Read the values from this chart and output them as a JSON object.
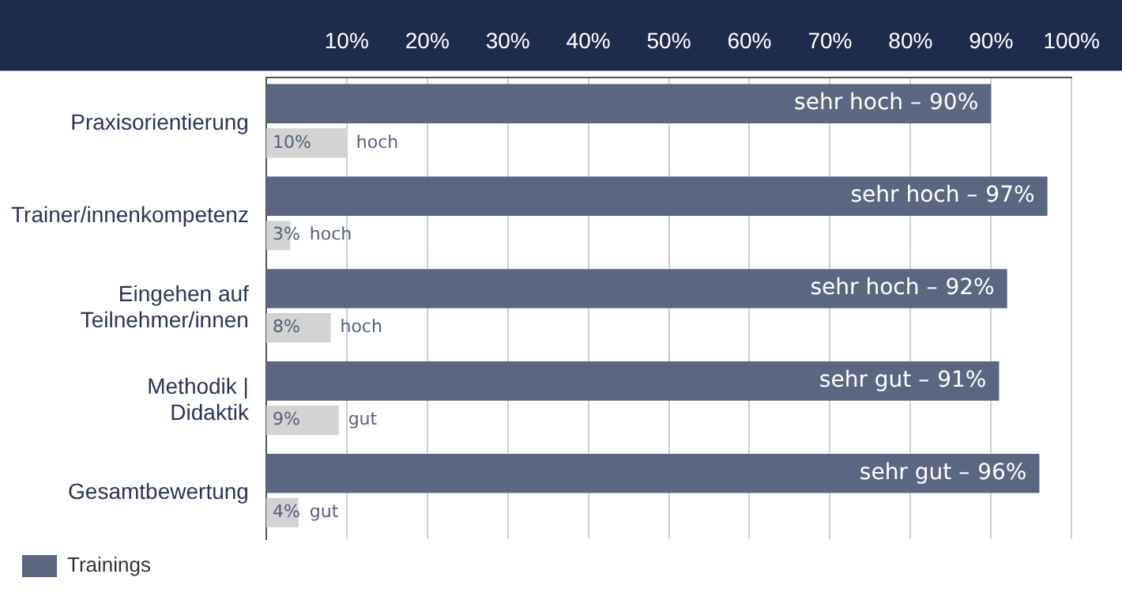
{
  "chart_data": {
    "type": "bar",
    "orientation": "horizontal",
    "categories": [
      "Praxisorientierung",
      "Trainer/innenkompetenz",
      "Eingehen auf\nTeilnehmer/innen",
      "Methodik |\nDidaktik",
      "Gesamtbewertung"
    ],
    "series": [
      {
        "name": "Trainings",
        "color": "#5b6780",
        "values": [
          90,
          97,
          92,
          91,
          96
        ],
        "value_labels": [
          "90%",
          "97%",
          "92%",
          "91%",
          "96%"
        ]
      },
      {
        "color": "#d3d3d3",
        "values": [
          10,
          3,
          8,
          9,
          4
        ],
        "value_labels": [
          "10%",
          "3%",
          "8%",
          "9%",
          "4%"
        ]
      }
    ],
    "annotations": [
      "sehr hoch –",
      "sehr hoch –",
      "sehr hoch –",
      "sehr gut –",
      "sehr gut –",
      "hoch",
      "hoch",
      "hoch",
      "gut",
      "gut"
    ],
    "xlim": [
      0,
      100
    ],
    "xticks": [
      {
        "value": 10,
        "label": "10%"
      },
      {
        "value": 20,
        "label": "20%"
      },
      {
        "value": 30,
        "label": "30%"
      },
      {
        "value": 40,
        "label": "40%"
      },
      {
        "value": 50,
        "label": "50%"
      },
      {
        "value": 60,
        "label": "60%"
      },
      {
        "value": 70,
        "label": "70%"
      },
      {
        "value": 80,
        "label": "80%"
      },
      {
        "value": 90,
        "label": "90%"
      },
      {
        "value": 100,
        "label": "100%"
      }
    ],
    "grid": "x",
    "legend": "bottom left"
  }
}
